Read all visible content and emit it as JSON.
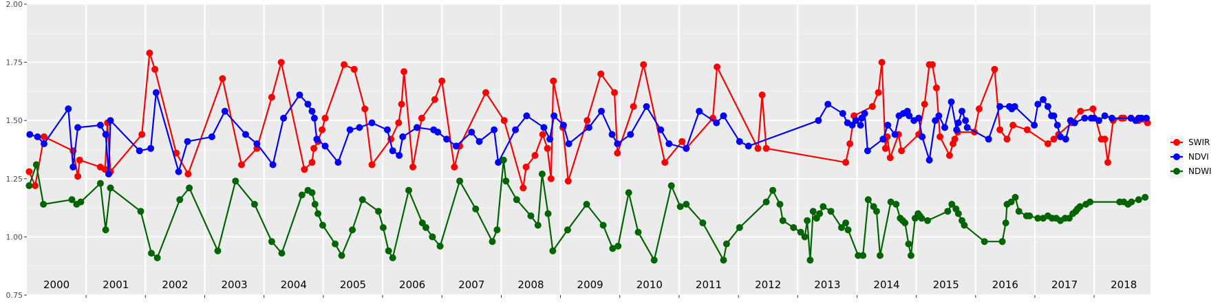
{
  "chart_data": {
    "type": "line",
    "title": "",
    "xlabel": "",
    "ylabel": "",
    "xlim": [
      2000.0,
      2018.95
    ],
    "ylim": [
      0.75,
      2.0
    ],
    "y_ticks": [
      "0.75",
      "1.00",
      "1.25",
      "1.50",
      "1.75",
      "2.00"
    ],
    "y_tick_values": [
      0.75,
      1.0,
      1.25,
      1.5,
      1.75,
      2.0
    ],
    "year_labels": [
      "2000",
      "2001",
      "2002",
      "2003",
      "2004",
      "2005",
      "2006",
      "2007",
      "2008",
      "2009",
      "2010",
      "2011",
      "2012",
      "2013",
      "2014",
      "2015",
      "2016",
      "2017",
      "2018"
    ],
    "grid": true,
    "legend_position": "right",
    "series": [
      {
        "name": "SWIR",
        "color": "#ff0000",
        "x": [
          2000.04,
          2000.14,
          2000.29,
          2000.78,
          2000.86,
          2000.89,
          2001.24,
          2001.32,
          2001.36,
          2001.41,
          2001.94,
          2002.07,
          2002.16,
          2002.52,
          2002.72,
          2003.3,
          2003.62,
          2003.88,
          2004.13,
          2004.29,
          2004.68,
          2004.81,
          2004.84,
          2004.91,
          2004.98,
          2005.03,
          2005.35,
          2005.52,
          2005.7,
          2005.82,
          2006.14,
          2006.27,
          2006.32,
          2006.36,
          2006.51,
          2006.66,
          2006.88,
          2007.0,
          2007.21,
          2007.3,
          2007.74,
          2008.05,
          2008.37,
          2008.42,
          2008.57,
          2008.7,
          2008.78,
          2008.84,
          2008.88,
          2009.04,
          2009.13,
          2009.45,
          2009.68,
          2009.91,
          2009.96,
          2010.23,
          2010.4,
          2010.76,
          2011.05,
          2011.12,
          2011.57,
          2011.64,
          2012.33,
          2012.4,
          2012.47,
          2013.81,
          2013.88,
          2013.95,
          2014.26,
          2014.36,
          2014.42,
          2014.48,
          2014.51,
          2014.56,
          2014.7,
          2014.75,
          2015.04,
          2015.14,
          2015.22,
          2015.27,
          2015.34,
          2015.4,
          2015.56,
          2015.62,
          2015.65,
          2015.7,
          2015.98,
          2016.06,
          2016.32,
          2016.41,
          2016.53,
          2016.63,
          2016.87,
          2017.22,
          2017.32,
          2017.4,
          2017.62,
          2017.77,
          2017.98,
          2018.12,
          2018.18,
          2018.23,
          2018.32,
          2018.46,
          2018.5,
          2018.62,
          2018.75,
          2018.9
        ],
        "y": [
          1.28,
          1.22,
          1.43,
          1.37,
          1.26,
          1.33,
          1.3,
          1.29,
          1.49,
          1.28,
          1.44,
          1.79,
          1.72,
          1.36,
          1.27,
          1.68,
          1.31,
          1.38,
          1.6,
          1.75,
          1.29,
          1.32,
          1.38,
          1.41,
          1.46,
          1.51,
          1.74,
          1.72,
          1.55,
          1.31,
          1.42,
          1.49,
          1.57,
          1.71,
          1.3,
          1.51,
          1.59,
          1.67,
          1.3,
          1.39,
          1.62,
          1.5,
          1.21,
          1.3,
          1.35,
          1.44,
          1.38,
          1.25,
          1.67,
          1.47,
          1.24,
          1.5,
          1.7,
          1.62,
          1.36,
          1.56,
          1.74,
          1.32,
          1.41,
          1.38,
          1.51,
          1.73,
          1.38,
          1.61,
          1.38,
          1.32,
          1.4,
          1.52,
          1.56,
          1.62,
          1.75,
          1.38,
          1.43,
          1.34,
          1.44,
          1.37,
          1.44,
          1.57,
          1.74,
          1.74,
          1.64,
          1.43,
          1.35,
          1.4,
          1.42,
          1.45,
          1.45,
          1.55,
          1.72,
          1.46,
          1.42,
          1.48,
          1.46,
          1.4,
          1.42,
          1.44,
          1.49,
          1.54,
          1.55,
          1.42,
          1.42,
          1.32,
          1.5,
          1.51,
          1.51,
          1.51,
          1.5,
          1.49
        ]
      },
      {
        "name": "NDVI",
        "color": "#0000ff",
        "x": [
          2000.05,
          2000.18,
          2000.29,
          2000.7,
          2000.78,
          2000.86,
          2001.24,
          2001.33,
          2001.38,
          2001.41,
          2001.9,
          2002.09,
          2002.18,
          2002.56,
          2002.71,
          2003.12,
          2003.34,
          2003.69,
          2003.88,
          2004.15,
          2004.33,
          2004.6,
          2004.74,
          2004.81,
          2004.85,
          2004.89,
          2005.03,
          2005.25,
          2005.45,
          2005.61,
          2005.82,
          2006.08,
          2006.17,
          2006.28,
          2006.34,
          2006.58,
          2006.86,
          2006.93,
          2007.08,
          2007.24,
          2007.5,
          2007.63,
          2007.88,
          2007.95,
          2008.24,
          2008.43,
          2008.72,
          2008.82,
          2008.89,
          2009.05,
          2009.14,
          2009.48,
          2009.69,
          2009.87,
          2009.96,
          2010.18,
          2010.45,
          2010.69,
          2010.83,
          2011.12,
          2011.34,
          2011.63,
          2011.75,
          2012.02,
          2012.17,
          2013.35,
          2013.51,
          2013.76,
          2013.84,
          2013.92,
          2013.98,
          2014.06,
          2014.08,
          2014.13,
          2014.18,
          2014.44,
          2014.52,
          2014.64,
          2014.71,
          2014.78,
          2014.85,
          2014.88,
          2014.96,
          2015.04,
          2015.1,
          2015.22,
          2015.32,
          2015.38,
          2015.48,
          2015.59,
          2015.68,
          2015.71,
          2015.77,
          2015.83,
          2015.86,
          2016.22,
          2016.41,
          2016.57,
          2016.61,
          2016.66,
          2016.99,
          2017.05,
          2017.14,
          2017.22,
          2017.28,
          2017.32,
          2017.38,
          2017.43,
          2017.52,
          2017.6,
          2017.67,
          2017.84,
          2017.95,
          2018.0,
          2018.08,
          2018.18,
          2018.3,
          2018.62,
          2018.7,
          2018.75,
          2018.8,
          2018.88
        ],
        "y": [
          1.44,
          1.43,
          1.4,
          1.55,
          1.3,
          1.47,
          1.48,
          1.44,
          1.27,
          1.5,
          1.37,
          1.38,
          1.62,
          1.28,
          1.41,
          1.43,
          1.54,
          1.44,
          1.4,
          1.31,
          1.51,
          1.61,
          1.57,
          1.54,
          1.51,
          1.42,
          1.39,
          1.32,
          1.46,
          1.47,
          1.49,
          1.46,
          1.37,
          1.35,
          1.43,
          1.47,
          1.46,
          1.45,
          1.42,
          1.39,
          1.45,
          1.41,
          1.46,
          1.32,
          1.46,
          1.52,
          1.47,
          1.42,
          1.52,
          1.48,
          1.4,
          1.47,
          1.54,
          1.44,
          1.4,
          1.44,
          1.56,
          1.46,
          1.4,
          1.38,
          1.54,
          1.49,
          1.52,
          1.41,
          1.39,
          1.5,
          1.57,
          1.53,
          1.49,
          1.48,
          1.5,
          1.48,
          1.51,
          1.53,
          1.37,
          1.42,
          1.48,
          1.44,
          1.52,
          1.53,
          1.54,
          1.52,
          1.5,
          1.51,
          1.43,
          1.33,
          1.5,
          1.52,
          1.47,
          1.58,
          1.46,
          1.49,
          1.54,
          1.5,
          1.47,
          1.42,
          1.56,
          1.56,
          1.55,
          1.56,
          1.48,
          1.57,
          1.59,
          1.56,
          1.52,
          1.52,
          1.48,
          1.43,
          1.42,
          1.5,
          1.49,
          1.51,
          1.51,
          1.51,
          1.5,
          1.52,
          1.51,
          1.51,
          1.5,
          1.51,
          1.51,
          1.51
        ]
      },
      {
        "name": "NDWI",
        "color": "#006400",
        "x": [
          2000.04,
          2000.16,
          2000.28,
          2000.76,
          2000.84,
          2000.91,
          2001.24,
          2001.33,
          2001.41,
          2001.92,
          2002.1,
          2002.2,
          2002.58,
          2002.74,
          2003.22,
          2003.52,
          2003.84,
          2004.13,
          2004.3,
          2004.64,
          2004.74,
          2004.81,
          2004.86,
          2004.91,
          2004.99,
          2005.2,
          2005.31,
          2005.49,
          2005.66,
          2005.93,
          2006.01,
          2006.1,
          2006.17,
          2006.44,
          2006.67,
          2006.73,
          2006.84,
          2006.97,
          2007.3,
          2007.57,
          2007.85,
          2007.93,
          2008.04,
          2008.08,
          2008.26,
          2008.5,
          2008.62,
          2008.69,
          2008.79,
          2008.87,
          2009.12,
          2009.44,
          2009.72,
          2009.88,
          2009.97,
          2010.15,
          2010.31,
          2010.58,
          2010.87,
          2011.02,
          2011.12,
          2011.4,
          2011.75,
          2011.8,
          2012.02,
          2012.47,
          2012.58,
          2012.7,
          2012.75,
          2012.93,
          2013.05,
          2013.12,
          2013.16,
          2013.21,
          2013.26,
          2013.32,
          2013.37,
          2013.43,
          2013.56,
          2013.74,
          2013.81,
          2013.85,
          2014.02,
          2014.1,
          2014.19,
          2014.28,
          2014.33,
          2014.39,
          2014.57,
          2014.66,
          2014.73,
          2014.77,
          2014.81,
          2014.87,
          2014.91,
          2014.98,
          2015.03,
          2015.06,
          2015.09,
          2015.19,
          2015.53,
          2015.6,
          2015.67,
          2015.71,
          2015.77,
          2015.81,
          2016.15,
          2016.45,
          2016.51,
          2016.53,
          2016.6,
          2016.67,
          2016.73,
          2016.86,
          2016.91,
          2017.05,
          2017.14,
          2017.22,
          2017.29,
          2017.36,
          2017.43,
          2017.51,
          2017.58,
          2017.64,
          2017.69,
          2017.72,
          2017.76,
          2017.86,
          2017.93,
          2018.43,
          2018.5,
          2018.57,
          2018.63,
          2018.75,
          2018.86
        ],
        "y": [
          1.22,
          1.31,
          1.14,
          1.16,
          1.14,
          1.15,
          1.23,
          1.03,
          1.21,
          1.11,
          0.93,
          0.91,
          1.16,
          1.21,
          0.94,
          1.24,
          1.14,
          0.98,
          0.93,
          1.18,
          1.2,
          1.19,
          1.14,
          1.1,
          1.05,
          0.97,
          0.92,
          1.03,
          1.16,
          1.11,
          1.04,
          0.94,
          0.91,
          1.2,
          1.06,
          1.04,
          1.0,
          0.96,
          1.24,
          1.12,
          0.98,
          1.03,
          1.33,
          1.24,
          1.16,
          1.09,
          1.05,
          1.27,
          1.1,
          0.94,
          1.03,
          1.14,
          1.05,
          0.95,
          0.96,
          1.19,
          1.02,
          0.9,
          1.22,
          1.13,
          1.14,
          1.06,
          0.9,
          0.97,
          1.04,
          1.15,
          1.2,
          1.14,
          1.07,
          1.04,
          1.02,
          1.0,
          1.07,
          0.9,
          1.11,
          1.08,
          1.1,
          1.13,
          1.11,
          1.04,
          1.06,
          1.03,
          0.92,
          0.92,
          1.16,
          1.13,
          1.11,
          0.92,
          1.15,
          1.14,
          1.08,
          1.07,
          1.06,
          0.97,
          0.92,
          1.08,
          1.1,
          1.09,
          1.08,
          1.07,
          1.11,
          1.14,
          1.12,
          1.1,
          1.07,
          1.05,
          0.98,
          0.98,
          1.06,
          1.14,
          1.15,
          1.17,
          1.11,
          1.09,
          1.09,
          1.08,
          1.08,
          1.09,
          1.08,
          1.08,
          1.07,
          1.08,
          1.08,
          1.1,
          1.11,
          1.12,
          1.13,
          1.14,
          1.15,
          1.15,
          1.15,
          1.14,
          1.15,
          1.16,
          1.17
        ]
      }
    ]
  }
}
